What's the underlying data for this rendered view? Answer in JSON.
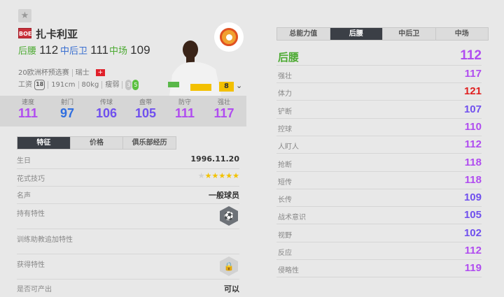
{
  "player": {
    "name": "扎卡利亚",
    "season_badge": "BOE",
    "season": "20欧洲杯预选赛",
    "nation": "瑞士",
    "salary_label": "工资",
    "salary": "18",
    "height": "191cm",
    "weight": "80kg",
    "body_type": "瘦弱",
    "weak_foot": "3",
    "strong_foot": "5",
    "enhance_level": "8",
    "positions": [
      {
        "name": "后腰",
        "value": "112",
        "color": "#4caa32"
      },
      {
        "name": "中后卫",
        "value": "111",
        "color": "#3a6fd0"
      },
      {
        "name": "中场",
        "value": "109",
        "color": "#4caa32"
      }
    ]
  },
  "summary_stats": [
    {
      "label": "速度",
      "value": "111",
      "color": "#b04cf0"
    },
    {
      "label": "射门",
      "value": "97",
      "color": "#2f6ee0"
    },
    {
      "label": "传球",
      "value": "106",
      "color": "#7050ee"
    },
    {
      "label": "盘带",
      "value": "105",
      "color": "#7050ee"
    },
    {
      "label": "防守",
      "value": "111",
      "color": "#b04cf0"
    },
    {
      "label": "强壮",
      "value": "117",
      "color": "#b04cf0"
    }
  ],
  "left_tabs": [
    {
      "label": "特征",
      "active": true
    },
    {
      "label": "价格"
    },
    {
      "label": "俱乐部经历"
    }
  ],
  "info": {
    "birthday_label": "生日",
    "birthday": "1996.11.20",
    "skill_label": "花式技巧",
    "skill_stars": 5,
    "fame_label": "名声",
    "fame": "一般球员",
    "traits_label": "持有特性",
    "coach_traits_label": "训练助教追加特性",
    "acquired_label": "获得特性",
    "producible_label": "是否可产出",
    "producible": "可以"
  },
  "right_tabs": [
    {
      "label": "总能力值"
    },
    {
      "label": "后腰",
      "active": true
    },
    {
      "label": "中后卫"
    },
    {
      "label": "中场"
    }
  ],
  "position_detail": {
    "title": "后腰",
    "value": "112",
    "title_color": "#4caa32",
    "attributes": [
      {
        "label": "强壮",
        "value": "117",
        "color": "#b04cf0"
      },
      {
        "label": "体力",
        "value": "121",
        "color": "#e02020"
      },
      {
        "label": "铲断",
        "value": "107",
        "color": "#7050ee"
      },
      {
        "label": "控球",
        "value": "110",
        "color": "#b04cf0"
      },
      {
        "label": "人盯人",
        "value": "112",
        "color": "#b04cf0"
      },
      {
        "label": "抢断",
        "value": "118",
        "color": "#b04cf0"
      },
      {
        "label": "短传",
        "value": "118",
        "color": "#b04cf0"
      },
      {
        "label": "长传",
        "value": "109",
        "color": "#7050ee"
      },
      {
        "label": "战术意识",
        "value": "105",
        "color": "#7050ee"
      },
      {
        "label": "视野",
        "value": "102",
        "color": "#7050ee"
      },
      {
        "label": "反应",
        "value": "112",
        "color": "#b04cf0"
      },
      {
        "label": "侵略性",
        "value": "119",
        "color": "#b04cf0"
      }
    ]
  }
}
